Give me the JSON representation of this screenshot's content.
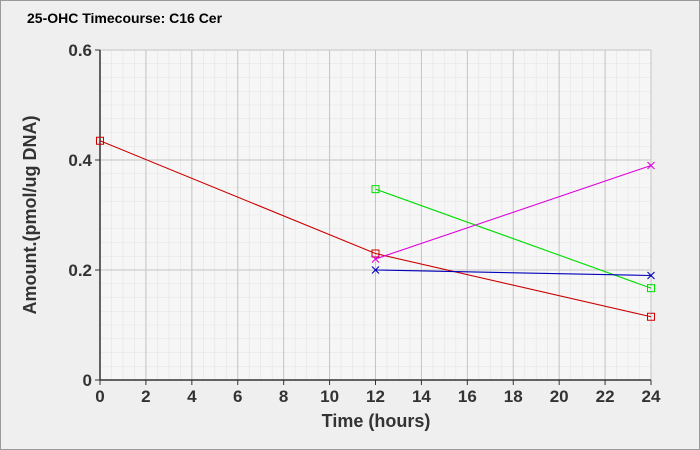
{
  "chart_data": {
    "type": "line",
    "title": "25-OHC Timecourse: C16 Cer",
    "xlabel": "Time (hours)",
    "ylabel": "Amount.(pmol/ug DNA)",
    "xlim": [
      0,
      24
    ],
    "ylim": [
      0,
      0.6
    ],
    "x_ticks": [
      "0",
      "2",
      "4",
      "6",
      "8",
      "10",
      "12",
      "14",
      "16",
      "18",
      "20",
      "22",
      "24"
    ],
    "y_ticks": [
      "0",
      "0.2",
      "0.4",
      "0.6"
    ],
    "grid": true,
    "series": [
      {
        "color": "#cc0000",
        "marker": "square",
        "x": [
          0,
          12,
          24
        ],
        "y": [
          0.435,
          0.23,
          0.115
        ]
      },
      {
        "color": "#00dd00",
        "marker": "square",
        "x": [
          12,
          24
        ],
        "y": [
          0.347,
          0.167
        ]
      },
      {
        "color": "#dd00dd",
        "marker": "x",
        "x": [
          12,
          24
        ],
        "y": [
          0.22,
          0.39
        ]
      },
      {
        "color": "#0000bb",
        "marker": "x",
        "x": [
          12,
          24
        ],
        "y": [
          0.2,
          0.19
        ]
      }
    ]
  }
}
